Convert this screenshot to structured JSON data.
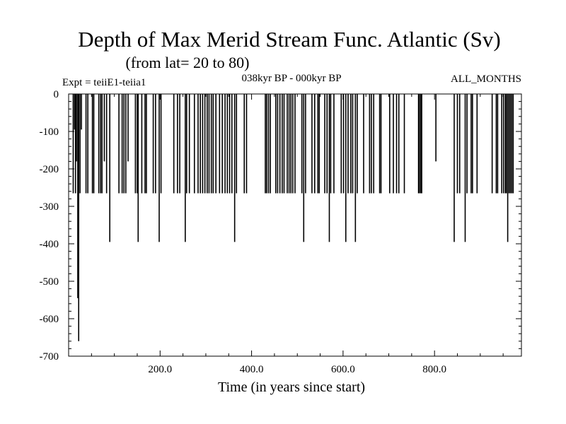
{
  "chart_data": {
    "type": "line",
    "title": "Depth of Max Merid Stream Func. Atlantic (Sv)",
    "subtitle": "(from lat= 20 to 80)",
    "experiment": "Expt = teiiE1-teiia1",
    "period": "038kyr BP - 000kyr BP",
    "months": "ALL_MONTHS",
    "xlabel": "Time (in years since start)",
    "ylabel": "",
    "xlim": [
      0,
      990
    ],
    "ylim": [
      -700,
      0
    ],
    "x_ticks": [
      200,
      400,
      600,
      800
    ],
    "x_tick_labels": [
      "200.0",
      "400.0",
      "600.0",
      "800.0"
    ],
    "y_ticks": [
      0,
      -100,
      -200,
      -300,
      -400,
      -500,
      -600,
      -700
    ],
    "y_tick_labels": [
      "0",
      "-100",
      "-200",
      "-300",
      "-400",
      "-500",
      "-600",
      "-700"
    ],
    "grid": false,
    "spikes": [
      {
        "x": 10,
        "y": -265
      },
      {
        "x": 13,
        "y": -95
      },
      {
        "x": 15,
        "y": -265
      },
      {
        "x": 17,
        "y": -180
      },
      {
        "x": 20,
        "y": -545
      },
      {
        "x": 22,
        "y": -660
      },
      {
        "x": 25,
        "y": -265
      },
      {
        "x": 28,
        "y": -95
      },
      {
        "x": 38,
        "y": -265
      },
      {
        "x": 42,
        "y": -265
      },
      {
        "x": 52,
        "y": -265
      },
      {
        "x": 55,
        "y": -265
      },
      {
        "x": 66,
        "y": -265
      },
      {
        "x": 70,
        "y": -265
      },
      {
        "x": 73,
        "y": -265
      },
      {
        "x": 78,
        "y": -180
      },
      {
        "x": 83,
        "y": -265
      },
      {
        "x": 90,
        "y": -395
      },
      {
        "x": 110,
        "y": -265
      },
      {
        "x": 117,
        "y": -265
      },
      {
        "x": 121,
        "y": -265
      },
      {
        "x": 125,
        "y": -265
      },
      {
        "x": 130,
        "y": -180
      },
      {
        "x": 146,
        "y": -265
      },
      {
        "x": 150,
        "y": -265
      },
      {
        "x": 152,
        "y": -395
      },
      {
        "x": 160,
        "y": -265
      },
      {
        "x": 167,
        "y": -265
      },
      {
        "x": 170,
        "y": -265
      },
      {
        "x": 185,
        "y": -265
      },
      {
        "x": 190,
        "y": -265
      },
      {
        "x": 198,
        "y": -395
      },
      {
        "x": 202,
        "y": -265
      },
      {
        "x": 230,
        "y": -265
      },
      {
        "x": 238,
        "y": -265
      },
      {
        "x": 243,
        "y": -265
      },
      {
        "x": 255,
        "y": -395
      },
      {
        "x": 258,
        "y": -265
      },
      {
        "x": 264,
        "y": -265
      },
      {
        "x": 275,
        "y": -265
      },
      {
        "x": 283,
        "y": -265
      },
      {
        "x": 288,
        "y": -265
      },
      {
        "x": 293,
        "y": -265
      },
      {
        "x": 298,
        "y": -265
      },
      {
        "x": 303,
        "y": -265
      },
      {
        "x": 307,
        "y": -265
      },
      {
        "x": 312,
        "y": -265
      },
      {
        "x": 316,
        "y": -265
      },
      {
        "x": 322,
        "y": -265
      },
      {
        "x": 330,
        "y": -265
      },
      {
        "x": 336,
        "y": -265
      },
      {
        "x": 342,
        "y": -265
      },
      {
        "x": 347,
        "y": -265
      },
      {
        "x": 352,
        "y": -265
      },
      {
        "x": 357,
        "y": -265
      },
      {
        "x": 363,
        "y": -395
      },
      {
        "x": 367,
        "y": -265
      },
      {
        "x": 384,
        "y": -265
      },
      {
        "x": 389,
        "y": -265
      },
      {
        "x": 430,
        "y": -265
      },
      {
        "x": 433,
        "y": -265
      },
      {
        "x": 437,
        "y": -265
      },
      {
        "x": 441,
        "y": -265
      },
      {
        "x": 453,
        "y": -265
      },
      {
        "x": 457,
        "y": -265
      },
      {
        "x": 462,
        "y": -265
      },
      {
        "x": 467,
        "y": -265
      },
      {
        "x": 471,
        "y": -265
      },
      {
        "x": 478,
        "y": -265
      },
      {
        "x": 482,
        "y": -265
      },
      {
        "x": 486,
        "y": -265
      },
      {
        "x": 490,
        "y": -265
      },
      {
        "x": 495,
        "y": -265
      },
      {
        "x": 510,
        "y": -265
      },
      {
        "x": 514,
        "y": -395
      },
      {
        "x": 518,
        "y": -265
      },
      {
        "x": 532,
        "y": -265
      },
      {
        "x": 538,
        "y": -265
      },
      {
        "x": 545,
        "y": -265
      },
      {
        "x": 548,
        "y": -265
      },
      {
        "x": 560,
        "y": -265
      },
      {
        "x": 565,
        "y": -265
      },
      {
        "x": 570,
        "y": -395
      },
      {
        "x": 573,
        "y": -265
      },
      {
        "x": 580,
        "y": -265
      },
      {
        "x": 596,
        "y": -265
      },
      {
        "x": 601,
        "y": -265
      },
      {
        "x": 606,
        "y": -395
      },
      {
        "x": 611,
        "y": -265
      },
      {
        "x": 617,
        "y": -265
      },
      {
        "x": 621,
        "y": -265
      },
      {
        "x": 627,
        "y": -395
      },
      {
        "x": 631,
        "y": -265
      },
      {
        "x": 645,
        "y": -265
      },
      {
        "x": 658,
        "y": -265
      },
      {
        "x": 662,
        "y": -265
      },
      {
        "x": 667,
        "y": -265
      },
      {
        "x": 680,
        "y": -265
      },
      {
        "x": 683,
        "y": -265
      },
      {
        "x": 702,
        "y": -265
      },
      {
        "x": 710,
        "y": -265
      },
      {
        "x": 717,
        "y": -265
      },
      {
        "x": 722,
        "y": -265
      },
      {
        "x": 734,
        "y": -265
      },
      {
        "x": 765,
        "y": -265
      },
      {
        "x": 767,
        "y": -265
      },
      {
        "x": 770,
        "y": -265
      },
      {
        "x": 772,
        "y": -265
      },
      {
        "x": 803,
        "y": -180
      },
      {
        "x": 843,
        "y": -395
      },
      {
        "x": 850,
        "y": -265
      },
      {
        "x": 855,
        "y": -265
      },
      {
        "x": 867,
        "y": -395
      },
      {
        "x": 871,
        "y": -265
      },
      {
        "x": 880,
        "y": -265
      },
      {
        "x": 883,
        "y": -265
      },
      {
        "x": 893,
        "y": -265
      },
      {
        "x": 926,
        "y": -265
      },
      {
        "x": 935,
        "y": -265
      },
      {
        "x": 938,
        "y": -265
      },
      {
        "x": 947,
        "y": -265
      },
      {
        "x": 951,
        "y": -265
      },
      {
        "x": 955,
        "y": -265
      },
      {
        "x": 957,
        "y": -265
      },
      {
        "x": 960,
        "y": -395
      },
      {
        "x": 963,
        "y": -265
      },
      {
        "x": 966,
        "y": -265
      },
      {
        "x": 969,
        "y": -265
      },
      {
        "x": 972,
        "y": -265
      }
    ]
  }
}
